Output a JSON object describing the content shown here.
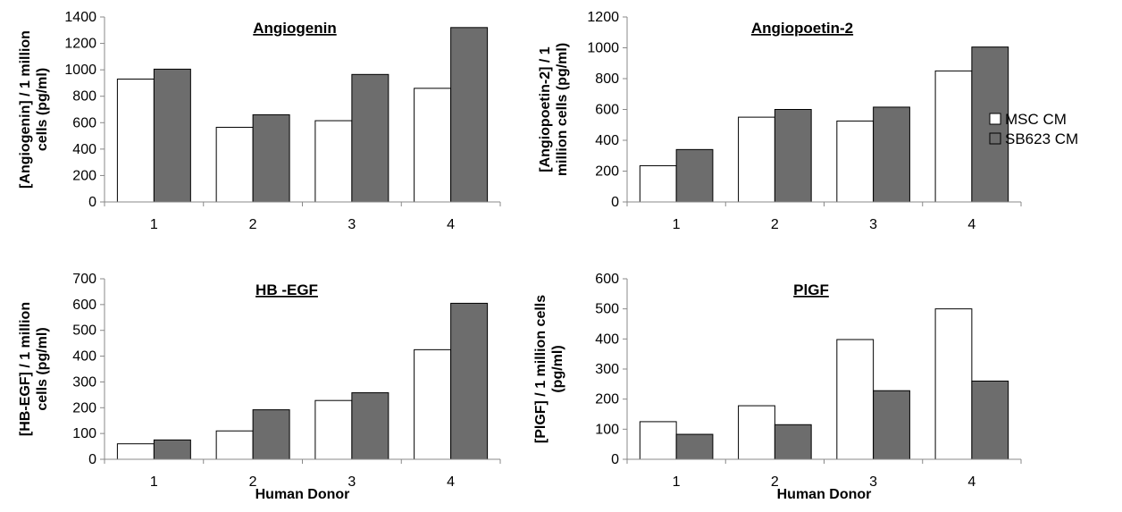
{
  "legend": {
    "entries": [
      {
        "label": "MSC CM",
        "color": "#ffffff"
      },
      {
        "label": "SB623 CM",
        "color": "#6d6d6d"
      }
    ]
  },
  "chart_data": [
    {
      "type": "bar",
      "title": "Angiogenin",
      "ylabel": [
        "[Angiogenin] / 1 million",
        "cells (pg/ml)"
      ],
      "xlabel": "",
      "categories": [
        "1",
        "2",
        "3",
        "4"
      ],
      "ylim": [
        0,
        1400
      ],
      "yticks": [
        0,
        200,
        400,
        600,
        800,
        1000,
        1200,
        1400
      ],
      "series": [
        {
          "name": "MSC CM",
          "values": [
            930,
            565,
            615,
            860
          ]
        },
        {
          "name": "SB623 CM",
          "values": [
            1005,
            660,
            965,
            1320
          ]
        }
      ]
    },
    {
      "type": "bar",
      "title": "Angiopoetin-2",
      "ylabel": [
        "[Angiopoetin-2] / 1",
        "million cells (pg/ml)"
      ],
      "xlabel": "",
      "categories": [
        "1",
        "2",
        "3",
        "4"
      ],
      "ylim": [
        0,
        1200
      ],
      "yticks": [
        0,
        200,
        400,
        600,
        800,
        1000,
        1200
      ],
      "series": [
        {
          "name": "MSC CM",
          "values": [
            235,
            550,
            525,
            850
          ]
        },
        {
          "name": "SB623 CM",
          "values": [
            340,
            600,
            615,
            1005
          ]
        }
      ]
    },
    {
      "type": "bar",
      "title": "HB -EGF",
      "ylabel": [
        "[HB-EGF] / 1 million",
        "cells (pg/ml)"
      ],
      "xlabel": "Human Donor",
      "categories": [
        "1",
        "2",
        "3",
        "4"
      ],
      "ylim": [
        0,
        700
      ],
      "yticks": [
        0,
        100,
        200,
        300,
        400,
        500,
        600,
        700
      ],
      "series": [
        {
          "name": "MSC CM",
          "values": [
            60,
            110,
            228,
            425
          ]
        },
        {
          "name": "SB623 CM",
          "values": [
            75,
            192,
            258,
            605
          ]
        }
      ]
    },
    {
      "type": "bar",
      "title": "PlGF",
      "ylabel": [
        "[PlGF] / 1 million cells",
        "(pg/ml)"
      ],
      "xlabel": "Human Donor",
      "categories": [
        "1",
        "2",
        "3",
        "4"
      ],
      "ylim": [
        0,
        600
      ],
      "yticks": [
        0,
        100,
        200,
        300,
        400,
        500,
        600
      ],
      "series": [
        {
          "name": "MSC CM",
          "values": [
            125,
            178,
            398,
            500
          ]
        },
        {
          "name": "SB623 CM",
          "values": [
            83,
            115,
            228,
            260
          ]
        }
      ]
    }
  ]
}
